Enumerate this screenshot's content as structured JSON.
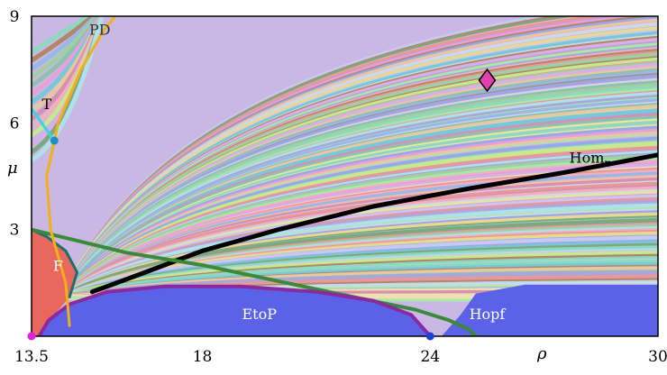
{
  "chart_data": {
    "type": "heatmap",
    "title": "",
    "xlabel": "ρ",
    "ylabel": "μ",
    "xlim": [
      13.5,
      30
    ],
    "ylim": [
      0,
      9
    ],
    "x_ticks": [
      {
        "value": 13.5,
        "label": "13.5"
      },
      {
        "value": 18,
        "label": "18"
      },
      {
        "value": 24,
        "label": "24"
      },
      {
        "value": 30,
        "label": "30"
      }
    ],
    "y_ticks": [
      {
        "value": 3,
        "label": "3"
      },
      {
        "value": 6,
        "label": "6"
      },
      {
        "value": 9,
        "label": "9"
      }
    ],
    "regions": [
      {
        "label": "F",
        "color": "#e8675f"
      },
      {
        "label": "EtoP",
        "color": "#5b62e8"
      }
    ],
    "curves": [
      {
        "name": "Hom",
        "subscript": "r",
        "color": "#000000",
        "points": [
          [
            15.1,
            1.25
          ],
          [
            16.5,
            1.8
          ],
          [
            18,
            2.4
          ],
          [
            20,
            3.0
          ],
          [
            22.5,
            3.65
          ],
          [
            25,
            4.15
          ],
          [
            27.5,
            4.6
          ],
          [
            30,
            5.1
          ]
        ]
      },
      {
        "name": "Hopf",
        "color": "#3a8a3a",
        "points": [
          [
            13.5,
            3.0
          ],
          [
            16,
            2.35
          ],
          [
            18,
            2.0
          ],
          [
            20,
            1.55
          ],
          [
            22,
            1.1
          ],
          [
            23.6,
            0.75
          ],
          [
            24.5,
            0.45
          ],
          [
            25,
            0.2
          ],
          [
            25.2,
            0.0
          ]
        ]
      },
      {
        "name": "EtoP",
        "color": "#8a2aa0",
        "points": [
          [
            13.7,
            0.0
          ],
          [
            13.95,
            0.45
          ],
          [
            14.5,
            0.9
          ],
          [
            15.5,
            1.25
          ],
          [
            17,
            1.4
          ],
          [
            19,
            1.4
          ],
          [
            21,
            1.25
          ],
          [
            22.5,
            1.0
          ],
          [
            23.5,
            0.6
          ],
          [
            24,
            0.0
          ]
        ]
      },
      {
        "name": "PD",
        "color": "#f4ae1a",
        "points": [
          [
            14.5,
            0.3
          ],
          [
            14.4,
            1.5
          ],
          [
            14.0,
            3.0
          ],
          [
            13.9,
            4.5
          ],
          [
            14.2,
            6.0
          ],
          [
            14.8,
            7.5
          ],
          [
            15.4,
            8.6
          ],
          [
            15.7,
            9.0
          ]
        ]
      },
      {
        "name": "T",
        "color": "#33d8e8",
        "points": [
          [
            13.5,
            6.4
          ],
          [
            14.1,
            5.5
          ]
        ]
      }
    ],
    "extra_curves": [
      {
        "color": "#1d6f6f",
        "points": [
          [
            14.5,
            1.1
          ],
          [
            14.7,
            1.8
          ],
          [
            14.4,
            2.4
          ],
          [
            13.9,
            2.8
          ],
          [
            13.5,
            3.0
          ]
        ]
      }
    ],
    "markers": [
      {
        "shape": "diamond",
        "color": "#e040b0",
        "x": 25.5,
        "y": 7.2
      },
      {
        "shape": "circle",
        "color": "#1e8fc0",
        "x": 14.1,
        "y": 5.5
      },
      {
        "shape": "circle",
        "color": "#e020e0",
        "x": 13.5,
        "y": 0.0
      },
      {
        "shape": "circle",
        "color": "#1f3fd0",
        "x": 24.0,
        "y": 0.0
      }
    ],
    "labels": [
      {
        "text": "PD",
        "x": 15.3,
        "y": 8.6,
        "color": "#1a3a3a"
      },
      {
        "text": "T",
        "x": 13.9,
        "y": 6.5,
        "color": "#000000"
      },
      {
        "text": "F",
        "x": 14.2,
        "y": 1.95,
        "color": "#ffffff"
      },
      {
        "text": "EtoP",
        "x": 19.5,
        "y": 0.6,
        "color": "#ffffff"
      },
      {
        "text": "Hopf",
        "x": 25.5,
        "y": 0.6,
        "color": "#ffffff"
      },
      {
        "text": "Hom",
        "subscript": "r",
        "x": 28.2,
        "y": 5.0,
        "color": "#000000"
      }
    ],
    "grid": false
  }
}
